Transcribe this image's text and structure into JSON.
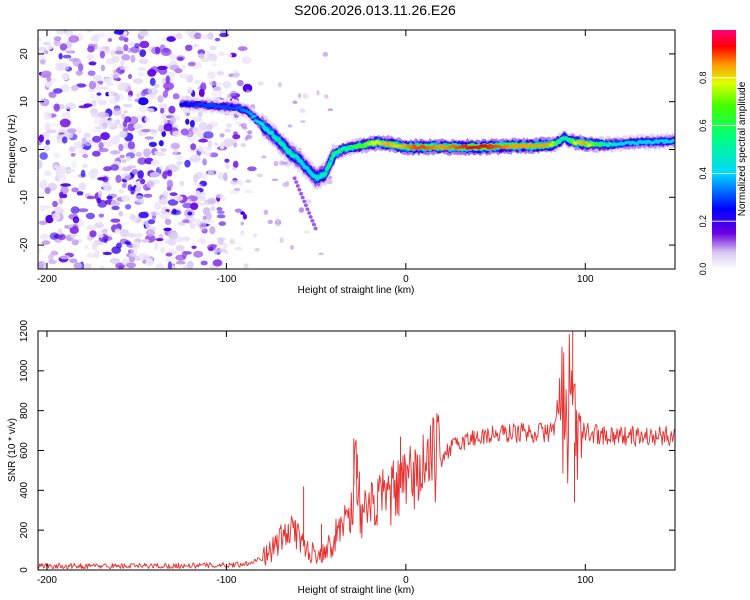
{
  "title": "S206.2026.013.11.26.E26",
  "chart_data": [
    {
      "type": "heatmap",
      "xlabel": "Height of straight line (km)",
      "ylabel": "Frequency (Hz)",
      "xlim": [
        -205,
        150
      ],
      "ylim": [
        -25,
        25
      ],
      "xticks": [
        -200,
        -100,
        0,
        100
      ],
      "xtick_labels": [
        "-200",
        "-100",
        "0",
        "100"
      ],
      "yticks": [
        -20,
        -10,
        0,
        10,
        20
      ],
      "ytick_labels": [
        "-20",
        "-10",
        "0",
        "10",
        "20"
      ],
      "colorbar": {
        "label": "Normalized spectral amplitude",
        "range": [
          0,
          1
        ],
        "ticks": [
          0,
          0.2,
          0.4,
          0.6,
          0.8
        ],
        "tick_labels": [
          "0.0",
          "0.2",
          "0.4",
          "0.6",
          "0.8"
        ]
      },
      "ridge": {
        "x": [
          -125,
          -110,
          -95,
          -88,
          -84,
          -80,
          -75,
          -70,
          -65,
          -60,
          -55,
          -50,
          -45,
          -40,
          -35,
          -30,
          -25,
          -20,
          -15,
          -10,
          -5,
          0,
          5,
          10,
          20,
          30,
          40,
          50,
          60,
          70,
          80,
          85,
          88,
          90,
          95,
          100,
          110,
          120,
          130,
          140,
          150
        ],
        "freq": [
          9.5,
          9.3,
          8.8,
          8.0,
          6.5,
          5.0,
          3.5,
          1.5,
          -0.5,
          -2.0,
          -4.0,
          -6.0,
          -5.0,
          -1.0,
          0.0,
          0.5,
          0.8,
          1.2,
          1.5,
          1.2,
          0.8,
          0.6,
          0.5,
          0.5,
          0.5,
          0.5,
          0.5,
          0.6,
          0.7,
          0.8,
          1.0,
          1.5,
          2.5,
          2.0,
          1.5,
          1.2,
          1.0,
          1.2,
          1.5,
          1.6,
          1.8
        ],
        "amplitude": [
          0.25,
          0.3,
          0.3,
          0.35,
          0.4,
          0.45,
          0.45,
          0.5,
          0.5,
          0.45,
          0.4,
          0.45,
          0.5,
          0.55,
          0.55,
          0.6,
          0.65,
          0.75,
          0.8,
          0.85,
          0.8,
          0.85,
          0.9,
          0.9,
          0.85,
          0.9,
          0.95,
          0.9,
          0.85,
          0.85,
          0.85,
          0.6,
          0.5,
          0.55,
          0.8,
          0.85,
          0.55,
          0.4,
          0.4,
          0.4,
          0.4
        ]
      },
      "noise_region_x": [
        -205,
        -80
      ]
    },
    {
      "type": "line",
      "xlabel": "Height of straight line (km)",
      "ylabel": "SNR (10 * v/v)",
      "xlim": [
        -205,
        150
      ],
      "ylim": [
        0,
        1200
      ],
      "xticks": [
        -200,
        -100,
        0,
        100
      ],
      "xtick_labels": [
        "-200",
        "-100",
        "0",
        "100"
      ],
      "yticks": [
        0,
        200,
        400,
        600,
        800,
        1000,
        1200
      ],
      "ytick_labels": [
        "0",
        "200",
        "400",
        "600",
        "800",
        "1000",
        "1200"
      ],
      "color": "#e8302f",
      "x": [
        -205,
        -180,
        -150,
        -120,
        -100,
        -90,
        -80,
        -75,
        -70,
        -65,
        -62,
        -60,
        -55,
        -50,
        -45,
        -40,
        -35,
        -30,
        -28,
        -25,
        -20,
        -15,
        -10,
        -5,
        0,
        5,
        10,
        20,
        30,
        40,
        50,
        60,
        70,
        80,
        85,
        88,
        90,
        92,
        94,
        96,
        100,
        110,
        120,
        130,
        140,
        150
      ],
      "y": [
        20,
        20,
        20,
        22,
        25,
        30,
        60,
        100,
        150,
        180,
        250,
        150,
        100,
        80,
        100,
        150,
        250,
        300,
        550,
        280,
        300,
        350,
        370,
        400,
        430,
        470,
        520,
        580,
        640,
        670,
        680,
        690,
        690,
        690,
        760,
        880,
        500,
        1100,
        640,
        700,
        690,
        680,
        675,
        670,
        670,
        675
      ],
      "spikes": [
        {
          "x": -57,
          "y": 420
        },
        {
          "x": -47,
          "y": 230
        },
        {
          "x": -29,
          "y": 660
        },
        {
          "x": -27,
          "y": 580
        },
        {
          "x": -3,
          "y": 670
        },
        {
          "x": 93,
          "y": 1200
        },
        {
          "x": 94,
          "y": 340
        }
      ]
    }
  ]
}
